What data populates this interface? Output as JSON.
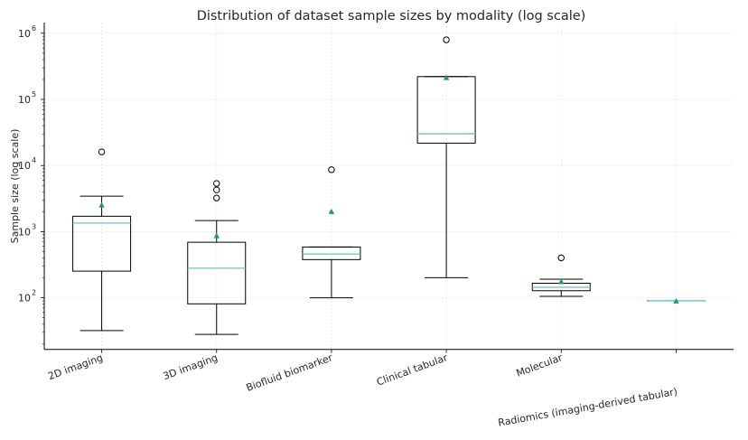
{
  "chart_data": {
    "type": "box",
    "title": "Distribution of dataset sample sizes by modality (log scale)",
    "xlabel": "",
    "ylabel": "Sample size (log scale)",
    "yscale": "log",
    "ylim": [
      16.6,
      1450000
    ],
    "yticks": [
      {
        "value": 100,
        "label": "10",
        "exp": "2"
      },
      {
        "value": 1000,
        "label": "10",
        "exp": "3"
      },
      {
        "value": 10000,
        "label": "10",
        "exp": "4"
      },
      {
        "value": 100000,
        "label": "10",
        "exp": "5"
      },
      {
        "value": 1000000,
        "label": "10",
        "exp": "6"
      }
    ],
    "grid": true,
    "colors": {
      "box": "#000000",
      "median": "#6cbfd0",
      "mean": "#1a9a6e",
      "grid": "#e6e6e6"
    },
    "categories": [
      "2D imaging",
      "3D imaging",
      "Biofluid biomarker",
      "Clinical tabular",
      "Molecular",
      "Radiomics (imaging-derived tabular)"
    ],
    "boxes": [
      {
        "whisker_low": 32,
        "q1": 253,
        "median": 1350,
        "q3": 1710,
        "whisker_high": 3440,
        "mean": 2510,
        "outliers": [
          16100
        ]
      },
      {
        "whisker_low": 28,
        "q1": 81,
        "median": 280,
        "q3": 692,
        "whisker_high": 1470,
        "mean": 863,
        "outliers": [
          3230,
          4280,
          5350
        ]
      },
      {
        "whisker_low": 100,
        "q1": 378,
        "median": 460,
        "q3": 586,
        "whisker_high": 586,
        "mean": 2000,
        "outliers": [
          8650
        ]
      },
      {
        "whisker_low": 201,
        "q1": 21800,
        "median": 30200,
        "q3": 221000,
        "whisker_high": 221000,
        "mean": 212000,
        "outliers": [
          795000
        ]
      },
      {
        "whisker_low": 105,
        "q1": 128,
        "median": 144,
        "q3": 166,
        "whisker_high": 191,
        "mean": 175,
        "outliers": [
          402
        ]
      },
      {
        "whisker_low": 90,
        "q1": 90,
        "median": 90,
        "q3": 90,
        "whisker_high": 90,
        "mean": 89,
        "outliers": []
      }
    ]
  }
}
